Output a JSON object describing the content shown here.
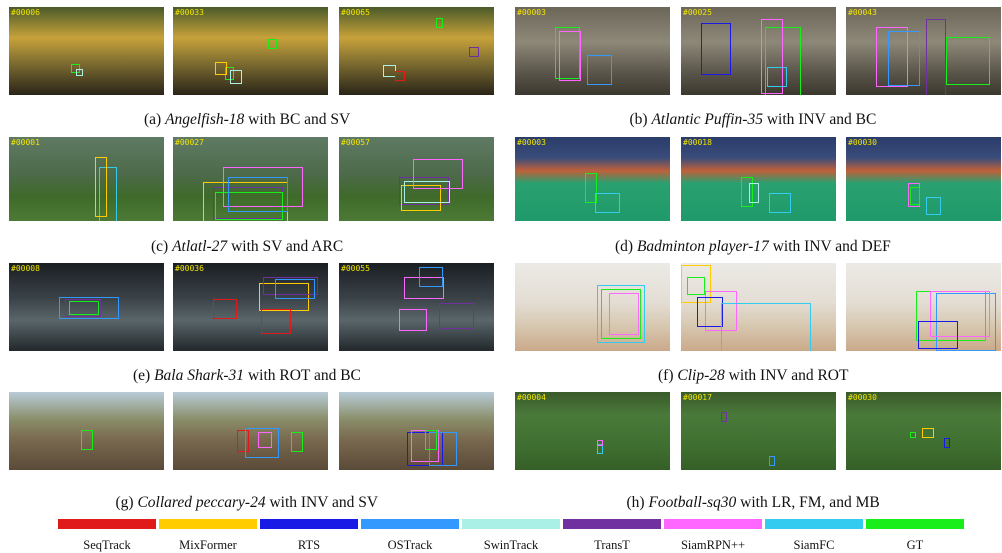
{
  "rows": [
    {
      "left": {
        "label": "(a)",
        "name": "Angelfish-18",
        "rest": " with BC and SV",
        "frames": [
          "#00006",
          "#00033",
          "#00065"
        ]
      },
      "right": {
        "label": "(b)",
        "name": "Atlantic Puffin-35",
        "rest": " with INV and BC",
        "frames": [
          "#00003",
          "#00025",
          "#00043"
        ]
      }
    },
    {
      "left": {
        "label": "(c)",
        "name": "Atlatl-27",
        "rest": " with SV and ARC",
        "frames": [
          "#00001",
          "#00027",
          "#00057"
        ]
      },
      "right": {
        "label": "(d)",
        "name": "Badminton player-17",
        "rest": " with INV and DEF",
        "frames": [
          "#00003",
          "#00018",
          "#00030"
        ]
      }
    },
    {
      "left": {
        "label": "(e)",
        "name": "Bala Shark-31",
        "rest": " with ROT and BC",
        "frames": [
          "#00008",
          "#00036",
          "#00055"
        ]
      },
      "right": {
        "label": "(f)",
        "name": "Clip-28",
        "rest": " with INV and ROT",
        "frames": [
          "",
          "",
          ""
        ]
      }
    },
    {
      "left": {
        "label": "(g)",
        "name": "Collared peccary-24",
        "rest": " with INV and SV",
        "frames": [
          "",
          "",
          ""
        ]
      },
      "right": {
        "label": "(h)",
        "name": "Football-sq30",
        "rest": " with LR, FM, and MB",
        "frames": [
          "#00004",
          "#00017",
          "#00030"
        ]
      }
    }
  ],
  "legend": [
    {
      "name": "SeqTrack",
      "color": "#e01a1a"
    },
    {
      "name": "MixFormer",
      "color": "#ffcc00"
    },
    {
      "name": "RTS",
      "color": "#1a1ae6"
    },
    {
      "name": "OSTrack",
      "color": "#3399ff"
    },
    {
      "name": "SwinTrack",
      "color": "#aaf0e6"
    },
    {
      "name": "TransT",
      "color": "#7030a0"
    },
    {
      "name": "SiamRPN++",
      "color": "#ff66ff"
    },
    {
      "name": "SiamFC",
      "color": "#33ccf0"
    },
    {
      "name": "GT",
      "color": "#1aee1a"
    }
  ]
}
